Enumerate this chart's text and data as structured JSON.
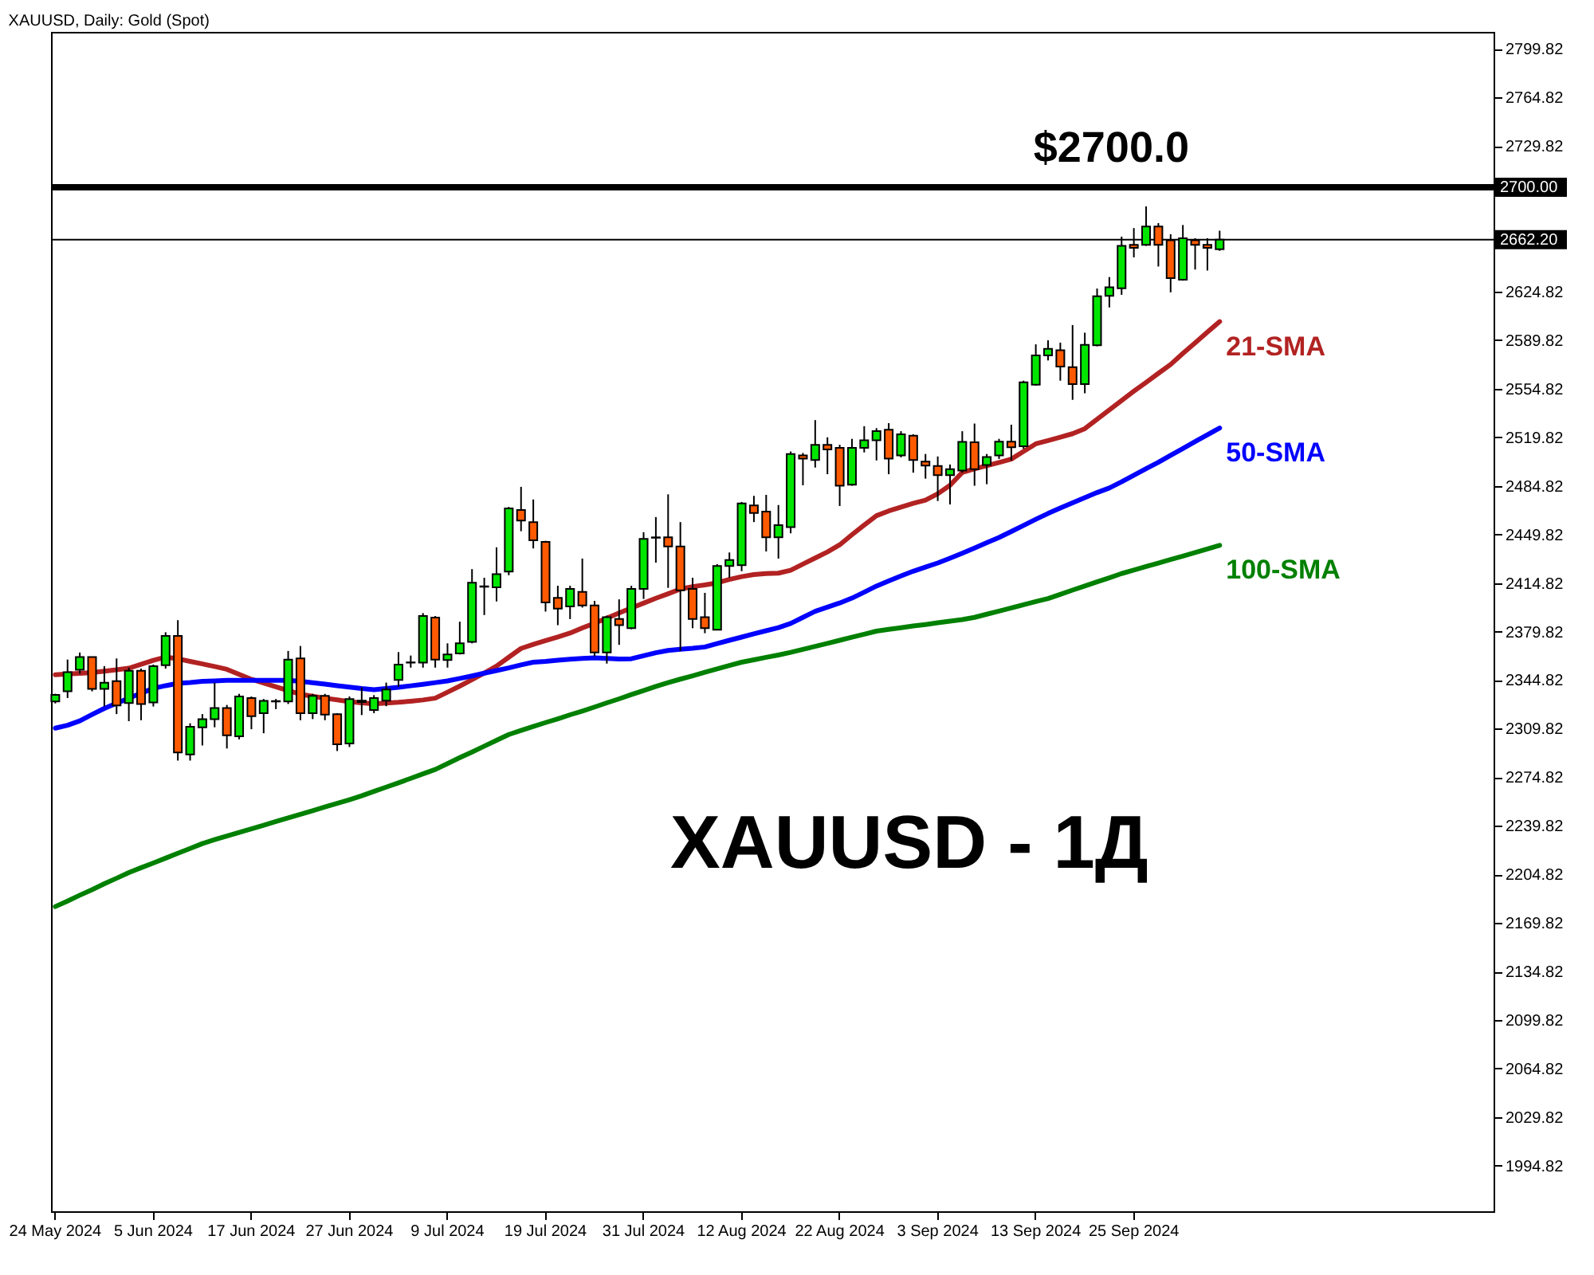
{
  "chart_data": {
    "type": "candlestick",
    "title": "XAUUSD, Daily:  Gold (Spot)",
    "categories": [
      "24 May 2024",
      null,
      null,
      null,
      null,
      null,
      null,
      null,
      "5 Jun 2024",
      null,
      null,
      null,
      null,
      null,
      null,
      null,
      "17 Jun 2024",
      null,
      null,
      null,
      null,
      null,
      null,
      null,
      "27 Jun 2024",
      null,
      null,
      null,
      null,
      null,
      null,
      null,
      "9 Jul 2024",
      null,
      null,
      null,
      null,
      null,
      null,
      null,
      "19 Jul 2024",
      null,
      null,
      null,
      null,
      null,
      null,
      null,
      "31 Jul 2024",
      null,
      null,
      null,
      null,
      null,
      null,
      null,
      "12 Aug 2024",
      null,
      null,
      null,
      null,
      null,
      null,
      null,
      "22 Aug 2024",
      null,
      null,
      null,
      null,
      null,
      null,
      null,
      "3 Sep 2024",
      null,
      null,
      null,
      null,
      null,
      null,
      null,
      "13 Sep 2024",
      null,
      null,
      null,
      null,
      null,
      null,
      null,
      "25 Sep 2024",
      null,
      null,
      null,
      null,
      null,
      null,
      null
    ],
    "ohlc": [
      [
        2329.4,
        2335.0,
        2328.0,
        2334.1
      ],
      [
        2336.7,
        2359.6,
        2331.9,
        2350.5
      ],
      [
        2352.3,
        2364.7,
        2349.4,
        2361.4
      ],
      [
        2361.4,
        2361.4,
        2336.7,
        2338.5
      ],
      [
        2338.5,
        2354.9,
        2325.8,
        2342.9
      ],
      [
        2344.0,
        2360.4,
        2320.3,
        2326.5
      ],
      [
        2328.3,
        2353.8,
        2315.2,
        2351.6
      ],
      [
        2351.6,
        2353.1,
        2315.9,
        2327.6
      ],
      [
        2328.7,
        2356.0,
        2325.8,
        2354.9
      ],
      [
        2355.6,
        2379.3,
        2353.1,
        2376.7
      ],
      [
        2376.7,
        2388.0,
        2286.8,
        2292.6
      ],
      [
        2291.2,
        2313.7,
        2286.8,
        2311.2
      ],
      [
        2310.8,
        2320.3,
        2297.7,
        2316.7
      ],
      [
        2316.7,
        2342.9,
        2310.8,
        2324.7
      ],
      [
        2324.7,
        2326.9,
        2295.5,
        2305.0
      ],
      [
        2304.3,
        2334.9,
        2302.1,
        2333.0
      ],
      [
        2331.9,
        2333.0,
        2309.4,
        2318.8
      ],
      [
        2321.0,
        2331.2,
        2306.5,
        2329.8
      ],
      [
        2329.4,
        2331.2,
        2323.9,
        2329.7
      ],
      [
        2329.4,
        2365.8,
        2327.6,
        2359.6
      ],
      [
        2360.4,
        2369.4,
        2315.9,
        2321.0
      ],
      [
        2321.0,
        2334.9,
        2316.7,
        2333.4
      ],
      [
        2333.4,
        2334.9,
        2315.9,
        2319.9
      ],
      [
        2320.3,
        2321.0,
        2293.7,
        2298.5
      ],
      [
        2299.2,
        2333.0,
        2296.6,
        2331.2
      ],
      [
        2330.0,
        2339.6,
        2319.6,
        2329.0
      ],
      [
        2323.2,
        2334.0,
        2321.0,
        2331.9
      ],
      [
        2330.0,
        2343.0,
        2326.0,
        2338.0
      ],
      [
        2345.0,
        2365.0,
        2340.0,
        2356.0
      ],
      [
        2357.4,
        2362.5,
        2353.8,
        2357.6
      ],
      [
        2357.4,
        2393.1,
        2353.8,
        2391.0
      ],
      [
        2389.9,
        2391.0,
        2353.8,
        2359.6
      ],
      [
        2359.3,
        2371.3,
        2353.8,
        2363.3
      ],
      [
        2364.0,
        2386.9,
        2363.3,
        2371.3
      ],
      [
        2372.4,
        2424.8,
        2371.3,
        2415.0
      ],
      [
        2412.1,
        2418.6,
        2391.7,
        2412.4
      ],
      [
        2411.7,
        2440.5,
        2401.5,
        2421.2
      ],
      [
        2423.0,
        2469.6,
        2420.4,
        2468.5
      ],
      [
        2467.4,
        2484.1,
        2452.1,
        2459.8
      ],
      [
        2458.7,
        2475.0,
        2439.7,
        2445.6
      ],
      [
        2444.5,
        2445.2,
        2394.2,
        2400.8
      ],
      [
        2404.1,
        2412.8,
        2384.4,
        2396.4
      ],
      [
        2397.9,
        2412.8,
        2388.8,
        2410.6
      ],
      [
        2408.4,
        2432.4,
        2397.1,
        2398.6
      ],
      [
        2398.6,
        2401.9,
        2362.0,
        2364.7
      ],
      [
        2364.7,
        2391.3,
        2356.7,
        2390.2
      ],
      [
        2388.8,
        2403.0,
        2370.2,
        2384.4
      ],
      [
        2382.2,
        2412.8,
        2381.5,
        2410.6
      ],
      [
        2410.6,
        2451.4,
        2403.3,
        2446.6
      ],
      [
        2447.4,
        2462.3,
        2429.5,
        2447.7
      ],
      [
        2447.7,
        2478.7,
        2411.3,
        2441.2
      ],
      [
        2441.2,
        2458.7,
        2365.8,
        2409.5
      ],
      [
        2410.6,
        2418.6,
        2382.2,
        2388.8
      ],
      [
        2390.2,
        2407.7,
        2378.6,
        2382.2
      ],
      [
        2381.1,
        2428.4,
        2381.1,
        2427.0
      ],
      [
        2427.0,
        2436.8,
        2418.6,
        2431.3
      ],
      [
        2427.7,
        2473.2,
        2423.3,
        2472.1
      ],
      [
        2470.7,
        2477.6,
        2458.7,
        2465.2
      ],
      [
        2466.3,
        2478.3,
        2437.5,
        2447.7
      ],
      [
        2447.7,
        2471.0,
        2432.4,
        2456.5
      ],
      [
        2455.0,
        2509.6,
        2450.6,
        2507.8
      ],
      [
        2506.7,
        2508.5,
        2485.2,
        2504.5
      ],
      [
        2503.4,
        2532.2,
        2498.0,
        2514.4
      ],
      [
        2514.4,
        2519.8,
        2493.2,
        2511.1
      ],
      [
        2512.2,
        2514.4,
        2470.3,
        2484.9
      ],
      [
        2485.6,
        2518.7,
        2484.9,
        2512.2
      ],
      [
        2512.2,
        2527.8,
        2508.9,
        2517.6
      ],
      [
        2517.6,
        2526.4,
        2503.1,
        2524.2
      ],
      [
        2525.3,
        2530.0,
        2493.2,
        2504.5
      ],
      [
        2506.7,
        2524.2,
        2505.3,
        2522.0
      ],
      [
        2520.9,
        2522.0,
        2494.3,
        2503.4
      ],
      [
        2502.3,
        2507.8,
        2490.0,
        2499.4
      ],
      [
        2499.1,
        2506.0,
        2473.9,
        2492.5
      ],
      [
        2492.5,
        2500.2,
        2471.4,
        2496.9
      ],
      [
        2495.8,
        2524.2,
        2494.3,
        2516.5
      ],
      [
        2516.2,
        2529.7,
        2484.9,
        2496.9
      ],
      [
        2499.8,
        2507.8,
        2486.0,
        2505.6
      ],
      [
        2506.7,
        2518.7,
        2504.2,
        2516.6
      ],
      [
        2516.6,
        2528.9,
        2503.1,
        2512.6
      ],
      [
        2513.3,
        2560.6,
        2511.5,
        2559.5
      ],
      [
        2557.7,
        2586.8,
        2557.0,
        2578.8
      ],
      [
        2578.8,
        2589.7,
        2575.2,
        2583.5
      ],
      [
        2582.5,
        2588.0,
        2560.6,
        2570.8
      ],
      [
        2570.4,
        2600.7,
        2546.8,
        2558.1
      ],
      [
        2558.1,
        2595.2,
        2551.5,
        2586.5
      ],
      [
        2586.1,
        2627.0,
        2585.4,
        2621.4
      ],
      [
        2621.8,
        2635.3,
        2613.4,
        2628.0
      ],
      [
        2627.2,
        2664.4,
        2622.5,
        2657.8
      ],
      [
        2658.5,
        2670.6,
        2649.5,
        2656.4
      ],
      [
        2658.5,
        2686.2,
        2657.8,
        2671.7
      ],
      [
        2671.7,
        2674.2,
        2642.9,
        2658.5
      ],
      [
        2661.8,
        2666.2,
        2624.3,
        2634.5
      ],
      [
        2633.4,
        2672.8,
        2632.7,
        2663.3
      ],
      [
        2661.8,
        2663.3,
        2640.7,
        2658.5
      ],
      [
        2658.5,
        2663.3,
        2640.0,
        2656.4
      ],
      [
        2655.3,
        2668.7,
        2654.2,
        2662.2
      ]
    ],
    "colors": [
      "#00e600",
      "#00e600",
      "#00e600",
      "#ff5a00",
      "#00e600",
      "#ff5a00",
      "#00e600",
      "#ff5a00",
      "#00e600",
      "#00e600",
      "#ff5a00",
      "#00e600",
      "#00e600",
      "#00e600",
      "#ff5a00",
      "#00e600",
      "#ff5a00",
      "#00e600",
      "#00e600",
      "#00e600",
      "#ff5a00",
      "#00e600",
      "#ff5a00",
      "#ff5a00",
      "#00e600",
      "#ff5a00",
      "#00e600",
      "#00e600",
      "#00e600",
      "#00e600",
      "#00e600",
      "#ff5a00",
      "#00e600",
      "#00e600",
      "#00e600",
      "#00e600",
      "#00e600",
      "#00e600",
      "#ff5a00",
      "#ff5a00",
      "#ff5a00",
      "#ff5a00",
      "#00e600",
      "#ff5a00",
      "#ff5a00",
      "#00e600",
      "#ff5a00",
      "#00e600",
      "#00e600",
      "#00e600",
      "#ff5a00",
      "#ff5a00",
      "#ff5a00",
      "#ff5a00",
      "#00e600",
      "#00e600",
      "#00e600",
      "#ff5a00",
      "#ff5a00",
      "#00e600",
      "#00e600",
      "#ff5a00",
      "#00e600",
      "#ff5a00",
      "#ff5a00",
      "#00e600",
      "#00e600",
      "#00e600",
      "#ff5a00",
      "#00e600",
      "#ff5a00",
      "#ff5a00",
      "#ff5a00",
      "#00e600",
      "#00e600",
      "#ff5a00",
      "#00e600",
      "#00e600",
      "#ff5a00",
      "#00e600",
      "#00e600",
      "#00e600",
      "#ff5a00",
      "#ff5a00",
      "#00e600",
      "#00e600",
      "#00e600",
      "#00e600",
      "#ff5a00",
      "#00e600",
      "#ff5a00",
      "#ff5a00",
      "#00e600",
      "#ff5a00",
      "#ff5a00",
      "#00e600"
    ],
    "series": [
      {
        "name": "21-SMA",
        "type": "line",
        "color": "#b22222",
        "values": [
          2348.7,
          2349.2,
          2349.7,
          2350.2,
          2351.3,
          2352.2,
          2353.4,
          2356.2,
          2359.1,
          2361.4,
          2360.2,
          2358.3,
          2356.5,
          2354.6,
          2352.6,
          2348.9,
          2345.4,
          2342.7,
          2340.0,
          2337.2,
          2334.6,
          2333.2,
          2331.8,
          2330.6,
          2329.3,
          2328.4,
          2327.7,
          2328.3,
          2328.8,
          2329.6,
          2330.5,
          2331.8,
          2336.1,
          2340.5,
          2345.1,
          2349.9,
          2354.9,
          2361.3,
          2367.6,
          2370.6,
          2373.3,
          2375.9,
          2378.7,
          2382.4,
          2385.8,
          2389.5,
          2393.2,
          2396.8,
          2400.3,
          2403.8,
          2407.0,
          2410.4,
          2412.2,
          2413.4,
          2414.9,
          2417.4,
          2419.4,
          2420.9,
          2421.6,
          2421.9,
          2424.0,
          2428.4,
          2432.8,
          2437.2,
          2442.3,
          2449.6,
          2456.6,
          2463.3,
          2466.7,
          2469.5,
          2472.2,
          2474.5,
          2479.1,
          2485.2,
          2494.5,
          2497.0,
          2499.4,
          2501.7,
          2504.1,
          2509.6,
          2515.1,
          2517.5,
          2519.9,
          2522.4,
          2526.0,
          2532.8,
          2539.5,
          2546.3,
          2553.0,
          2559.4,
          2565.9,
          2572.3,
          2580.3,
          2587.9,
          2595.6,
          2603.2
        ]
      },
      {
        "name": "50-SMA",
        "type": "line",
        "color": "#0000ff",
        "values": [
          2310.2,
          2312.3,
          2315.4,
          2320.0,
          2324.4,
          2328.1,
          2331.7,
          2335.4,
          2338.8,
          2340.8,
          2342.5,
          2343.1,
          2343.9,
          2344.2,
          2344.6,
          2344.7,
          2344.7,
          2344.7,
          2344.7,
          2344.7,
          2343.9,
          2342.9,
          2341.9,
          2340.8,
          2339.8,
          2338.7,
          2337.9,
          2338.8,
          2339.6,
          2340.7,
          2341.8,
          2343.0,
          2344.2,
          2346.0,
          2347.8,
          2349.8,
          2351.7,
          2353.6,
          2355.8,
          2357.7,
          2358.3,
          2359.1,
          2359.9,
          2360.5,
          2360.9,
          2360.5,
          2360.0,
          2360.2,
          2362.4,
          2364.5,
          2366.2,
          2367.1,
          2367.8,
          2368.7,
          2371.1,
          2373.5,
          2375.8,
          2378.2,
          2380.4,
          2382.6,
          2385.6,
          2390.0,
          2394.4,
          2397.4,
          2400.4,
          2403.9,
          2408.2,
          2412.6,
          2416.3,
          2419.9,
          2423.3,
          2426.3,
          2429.2,
          2432.7,
          2436.3,
          2440.0,
          2443.8,
          2447.6,
          2451.9,
          2456.3,
          2460.7,
          2464.9,
          2468.8,
          2472.6,
          2476.3,
          2480.0,
          2483.3,
          2487.7,
          2492.5,
          2497.2,
          2501.8,
          2506.8,
          2511.7,
          2516.7,
          2521.6,
          2526.5
        ]
      },
      {
        "name": "100-SMA",
        "type": "line",
        "color": "#008000",
        "values": [
          2181.6,
          2185.6,
          2189.8,
          2193.8,
          2198.0,
          2202.0,
          2206.1,
          2209.6,
          2213.0,
          2216.5,
          2220.0,
          2223.5,
          2227.0,
          2229.8,
          2232.4,
          2235.0,
          2237.6,
          2240.2,
          2242.9,
          2245.5,
          2248.1,
          2250.7,
          2253.4,
          2256.0,
          2258.6,
          2261.4,
          2264.6,
          2267.7,
          2270.8,
          2274.0,
          2277.2,
          2280.4,
          2284.6,
          2288.9,
          2293.0,
          2297.2,
          2301.4,
          2305.6,
          2308.5,
          2311.4,
          2314.2,
          2316.9,
          2319.8,
          2322.5,
          2325.4,
          2328.4,
          2331.3,
          2334.4,
          2337.3,
          2340.3,
          2343.0,
          2345.5,
          2347.9,
          2350.5,
          2352.9,
          2355.3,
          2357.7,
          2359.4,
          2361.2,
          2362.9,
          2364.8,
          2367.0,
          2369.1,
          2371.3,
          2373.5,
          2375.7,
          2377.9,
          2380.1,
          2381.4,
          2382.6,
          2383.8,
          2384.9,
          2386.1,
          2387.3,
          2388.4,
          2390.0,
          2392.3,
          2394.5,
          2396.8,
          2399.1,
          2401.4,
          2403.6,
          2406.6,
          2409.7,
          2412.6,
          2415.6,
          2418.5,
          2421.6,
          2424.1,
          2426.7,
          2429.2,
          2431.7,
          2434.2,
          2436.7,
          2439.4,
          2441.9
        ]
      }
    ],
    "ylim": [
      1962,
      2812
    ],
    "yticks": [
      1994.82,
      2029.82,
      2064.82,
      2099.82,
      2134.82,
      2169.82,
      2204.82,
      2239.82,
      2274.82,
      2309.82,
      2344.82,
      2379.82,
      2414.82,
      2449.82,
      2484.82,
      2519.82,
      2554.82,
      2589.82,
      2624.82,
      2729.82,
      2764.82,
      2799.82
    ],
    "ref_lines": [
      {
        "axis": "y",
        "value": 2700,
        "label": "2700.00",
        "color": "#000000"
      },
      {
        "axis": "y",
        "value": 2662.2,
        "label": "2662.20",
        "color": "#000000"
      }
    ],
    "annotations": [
      {
        "text": "$2700.0",
        "y": 2700
      },
      "XAUUSD - 1Д"
    ]
  }
}
